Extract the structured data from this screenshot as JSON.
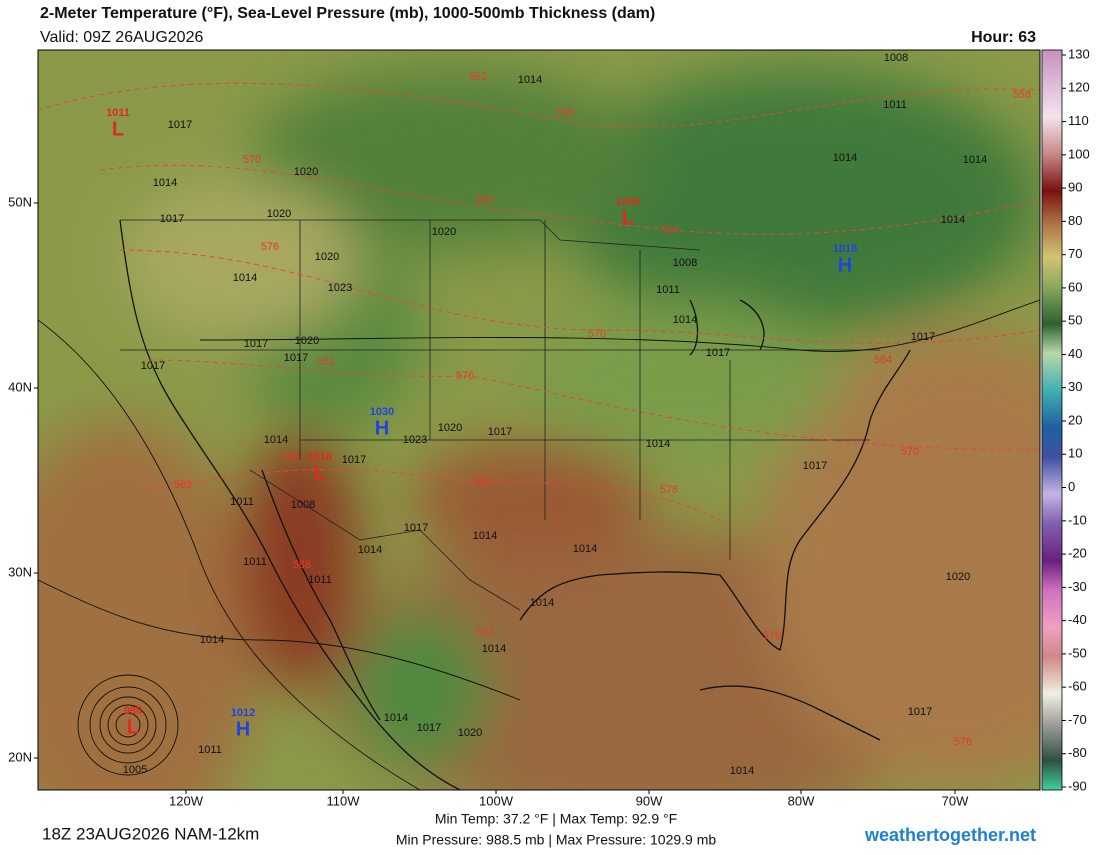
{
  "header": {
    "title": "2-Meter Temperature (°F), Sea-Level Pressure (mb), 1000-500mb Thickness (dam)",
    "valid": "Valid: 09Z 26AUG2026",
    "hour": "Hour: 63"
  },
  "colorbar": {
    "ticks": [
      130,
      120,
      110,
      100,
      90,
      80,
      70,
      60,
      50,
      40,
      30,
      20,
      10,
      0,
      -10,
      -20,
      -30,
      -40,
      -50,
      -60,
      -70,
      -80,
      -90
    ]
  },
  "map": {
    "lat_labels": [
      "50N",
      "40N",
      "30N",
      "20N"
    ],
    "lon_labels": [
      "120W",
      "110W",
      "100W",
      "90W",
      "80W",
      "70W"
    ],
    "pressure_centers": [
      {
        "type": "L",
        "value": 1011
      },
      {
        "type": "L",
        "value": 1006
      },
      {
        "type": "H",
        "value": 1018
      },
      {
        "type": "H",
        "value": 1030
      },
      {
        "type": "L",
        "value": 1016
      },
      {
        "type": "H",
        "value": 1012
      },
      {
        "type": "L",
        "value": 988
      }
    ],
    "isobar_labels": [
      1008,
      1014,
      1011,
      1017,
      1014,
      1014,
      1014,
      1020,
      1020,
      1017,
      1014,
      1020,
      1020,
      1014,
      1023,
      1008,
      1011,
      1014,
      1020,
      1017,
      1017,
      1017,
      1017,
      1017,
      1023,
      1020,
      1017,
      1014,
      1014,
      1017,
      1017,
      1011,
      1008,
      1014,
      1017,
      1014,
      1014,
      1011,
      1011,
      1020,
      1014,
      1014,
      1014,
      1014,
      1017,
      1020,
      1017,
      1011,
      1005,
      1014
    ],
    "thickness_labels": [
      552,
      558,
      558,
      570,
      564,
      564,
      576,
      570,
      582,
      576,
      564,
      570,
      588,
      582,
      582,
      576,
      588,
      582,
      576,
      576
    ]
  },
  "footer": {
    "run": "18Z 23AUG2026 NAM-12km",
    "temps": "Min Temp:  37.2 °F | Max Temp:  92.9 °F",
    "pressures": "Min Pressure: 988.5 mb | Max Pressure: 1029.9 mb",
    "site": "weathertogether.net"
  }
}
